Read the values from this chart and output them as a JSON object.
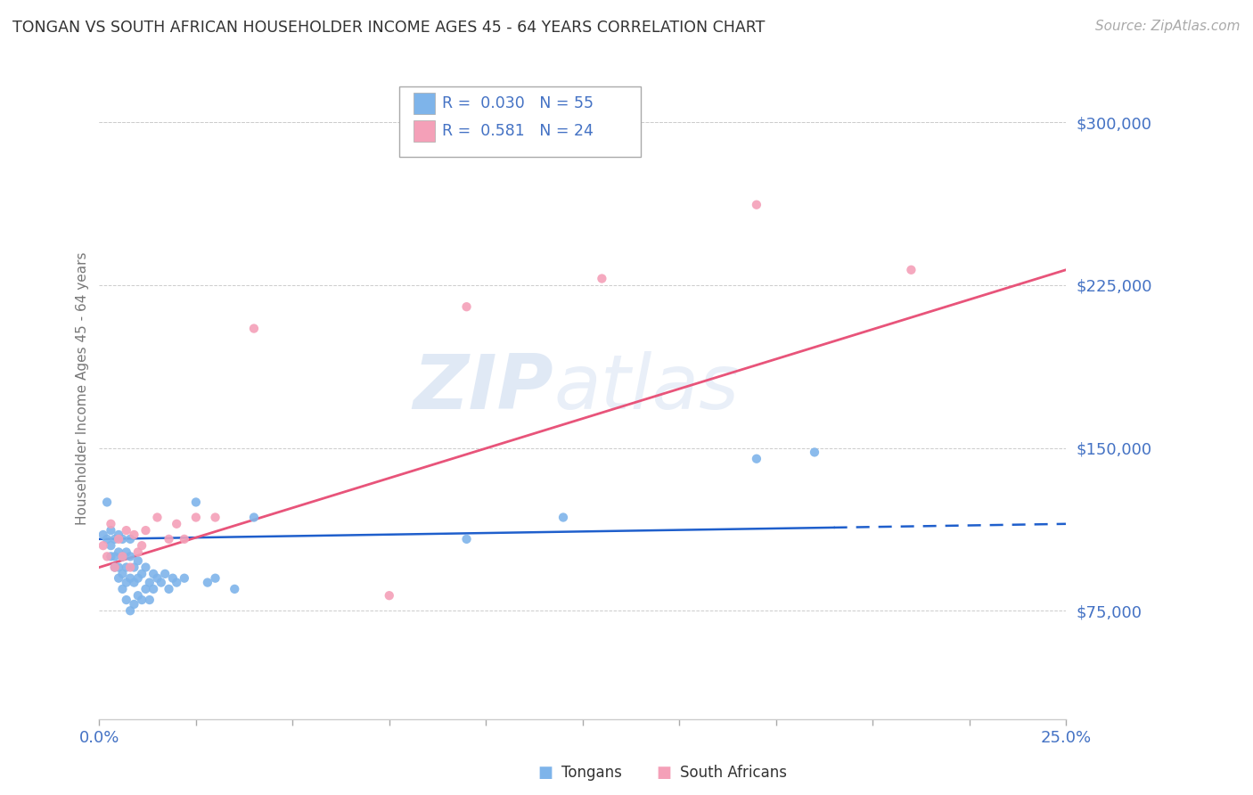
{
  "title": "TONGAN VS SOUTH AFRICAN HOUSEHOLDER INCOME AGES 45 - 64 YEARS CORRELATION CHART",
  "source": "Source: ZipAtlas.com",
  "ylabel": "Householder Income Ages 45 - 64 years",
  "xmin": 0.0,
  "xmax": 0.25,
  "ymin": 25000,
  "ymax": 330000,
  "yticks": [
    75000,
    150000,
    225000,
    300000
  ],
  "ytick_labels": [
    "$75,000",
    "$150,000",
    "$225,000",
    "$300,000"
  ],
  "axis_label_color": "#4472c4",
  "tongan_color": "#7eb4ea",
  "sa_color": "#f4a0b8",
  "tongan_line_color": "#1f5fcc",
  "sa_line_color": "#e8547a",
  "grid_color": "#cccccc",
  "legend_R_tongan": "0.030",
  "legend_N_tongan": "55",
  "legend_R_sa": "0.581",
  "legend_N_sa": "24",
  "watermark_zip": "ZIP",
  "watermark_atlas": "atlas",
  "tongan_x": [
    0.001,
    0.002,
    0.002,
    0.003,
    0.003,
    0.003,
    0.004,
    0.004,
    0.004,
    0.005,
    0.005,
    0.005,
    0.005,
    0.006,
    0.006,
    0.006,
    0.006,
    0.007,
    0.007,
    0.007,
    0.007,
    0.008,
    0.008,
    0.008,
    0.008,
    0.009,
    0.009,
    0.009,
    0.01,
    0.01,
    0.01,
    0.011,
    0.011,
    0.012,
    0.012,
    0.013,
    0.013,
    0.014,
    0.014,
    0.015,
    0.016,
    0.017,
    0.018,
    0.019,
    0.02,
    0.022,
    0.025,
    0.028,
    0.03,
    0.035,
    0.04,
    0.095,
    0.12,
    0.17,
    0.185
  ],
  "tongan_y": [
    110000,
    125000,
    108000,
    105000,
    100000,
    112000,
    95000,
    108000,
    100000,
    90000,
    102000,
    110000,
    95000,
    85000,
    100000,
    108000,
    92000,
    80000,
    95000,
    102000,
    88000,
    75000,
    90000,
    100000,
    108000,
    78000,
    88000,
    95000,
    82000,
    90000,
    98000,
    80000,
    92000,
    85000,
    95000,
    88000,
    80000,
    92000,
    85000,
    90000,
    88000,
    92000,
    85000,
    90000,
    88000,
    90000,
    125000,
    88000,
    90000,
    85000,
    118000,
    108000,
    118000,
    145000,
    148000
  ],
  "sa_x": [
    0.001,
    0.002,
    0.003,
    0.004,
    0.005,
    0.006,
    0.007,
    0.008,
    0.009,
    0.01,
    0.011,
    0.012,
    0.015,
    0.018,
    0.02,
    0.022,
    0.025,
    0.03,
    0.04,
    0.075,
    0.095,
    0.13,
    0.17,
    0.21
  ],
  "sa_y": [
    105000,
    100000,
    115000,
    95000,
    108000,
    100000,
    112000,
    95000,
    110000,
    102000,
    105000,
    112000,
    118000,
    108000,
    115000,
    108000,
    118000,
    118000,
    205000,
    82000,
    215000,
    228000,
    262000,
    232000
  ],
  "tongan_line_x": [
    0.0,
    0.25
  ],
  "tongan_line_y": [
    108000,
    115000
  ],
  "sa_line_x": [
    0.0,
    0.25
  ],
  "sa_line_y": [
    95000,
    232000
  ]
}
